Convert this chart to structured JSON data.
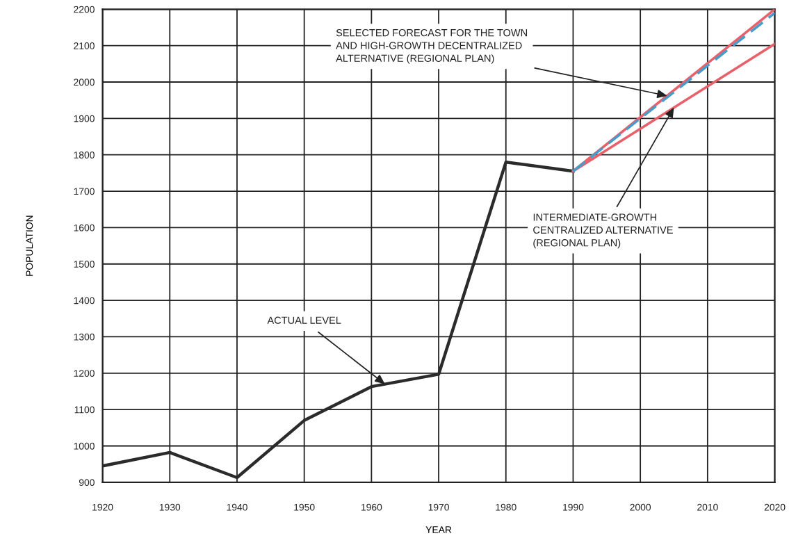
{
  "chart_data": {
    "type": "line",
    "xlabel": "YEAR",
    "ylabel": "POPULATION",
    "series": [
      {
        "color": "#2b2b2b",
        "line_style": "solid",
        "x": [
          1920,
          1930,
          1940,
          1950,
          1960,
          1970,
          1980,
          1990
        ],
        "values": [
          945,
          982,
          913,
          1070,
          1163,
          1197,
          1780,
          1755
        ]
      },
      {
        "color": "#e8606a",
        "line_style": "solid",
        "x": [
          1990,
          2020
        ],
        "values": [
          1755,
          2200
        ]
      },
      {
        "color": "#e8606a",
        "line_style": "solid",
        "x": [
          1990,
          2020
        ],
        "values": [
          1755,
          2105
        ]
      },
      {
        "color": "#4a9cc8",
        "line_style": "dashed",
        "x": [
          1990,
          2020
        ],
        "values": [
          1755,
          2190
        ]
      }
    ],
    "annotations": [
      {
        "text": "ACTUAL LEVEL",
        "x": 1962,
        "y": 1170
      },
      {
        "text": "SELECTED FORECAST FOR THE TOWN\nAND HIGH-GROWTH DECENTRALIZED\nALTERNATIVE (REGIONAL PLAN)",
        "x": 2004,
        "y": 1962
      },
      {
        "text": "INTERMEDIATE-GROWTH\nCENTRALIZED ALTERNATIVE\n(REGIONAL PLAN)",
        "x": 2005,
        "y": 1930
      }
    ],
    "xlim": [
      1920,
      2020
    ],
    "ylim": [
      900,
      2200
    ],
    "xticks": [
      1920,
      1930,
      1940,
      1950,
      1960,
      1970,
      1980,
      1990,
      2000,
      2010,
      2020
    ],
    "yticks": [
      900,
      1000,
      1100,
      1200,
      1300,
      1400,
      1500,
      1600,
      1700,
      1800,
      1900,
      2000,
      2100,
      2200
    ],
    "grid": true,
    "marker": "none"
  }
}
